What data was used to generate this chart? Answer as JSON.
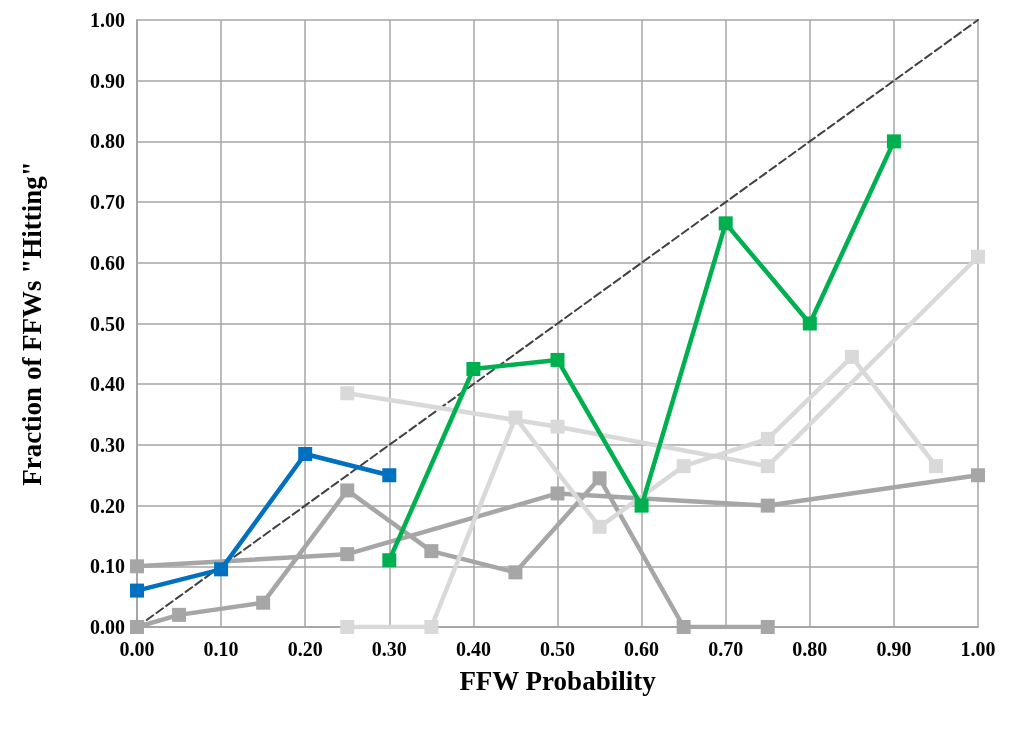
{
  "chart_data": {
    "type": "line",
    "xlabel": "FFW Probability",
    "ylabel": "Fraction of FFWs \"Hitting\"",
    "xlim": [
      0,
      1
    ],
    "ylim": [
      0,
      1
    ],
    "xticks": [
      {
        "value": 0,
        "label": "0.00"
      },
      {
        "value": 0.1,
        "label": "0.10"
      },
      {
        "value": 0.2,
        "label": "0.20"
      },
      {
        "value": 0.3,
        "label": "0.30"
      },
      {
        "value": 0.4,
        "label": "0.40"
      },
      {
        "value": 0.5,
        "label": "0.50"
      },
      {
        "value": 0.6,
        "label": "0.60"
      },
      {
        "value": 0.7,
        "label": "0.70"
      },
      {
        "value": 0.8,
        "label": "0.80"
      },
      {
        "value": 0.9,
        "label": "0.90"
      },
      {
        "value": 1,
        "label": "1.00"
      }
    ],
    "yticks": [
      {
        "value": 0,
        "label": "0.00"
      },
      {
        "value": 0.1,
        "label": "0.10"
      },
      {
        "value": 0.2,
        "label": "0.20"
      },
      {
        "value": 0.3,
        "label": "0.30"
      },
      {
        "value": 0.4,
        "label": "0.40"
      },
      {
        "value": 0.5,
        "label": "0.50"
      },
      {
        "value": 0.6,
        "label": "0.60"
      },
      {
        "value": 0.7,
        "label": "0.70"
      },
      {
        "value": 0.8,
        "label": "0.80"
      },
      {
        "value": 0.9,
        "label": "0.90"
      },
      {
        "value": 1,
        "label": "1.00"
      }
    ],
    "grid": true,
    "marker": "square",
    "series": [
      {
        "color": "#a6a6a6",
        "x": [
          0,
          0.25,
          0.5,
          0.75,
          1.0
        ],
        "values": [
          0.1,
          0.12,
          0.22,
          0.2,
          0.25
        ]
      },
      {
        "color": "#a6a6a6",
        "x": [
          0,
          0.05,
          0.15,
          0.25,
          0.35,
          0.45,
          0.55,
          0.65,
          0.75
        ],
        "values": [
          0,
          0.02,
          0.04,
          0.225,
          0.125,
          0.09,
          0.245,
          0,
          0
        ]
      },
      {
        "color": "#d9d9d9",
        "x": [
          0.25,
          0.5,
          0.75,
          1.0
        ],
        "values": [
          0.385,
          0.33,
          0.265,
          0.61
        ]
      },
      {
        "color": "#d9d9d9",
        "x": [
          0.25,
          0.35,
          0.45,
          0.55,
          0.65,
          0.75,
          0.85,
          0.95
        ],
        "values": [
          0,
          0,
          0.345,
          0.165,
          0.265,
          0.31,
          0.445,
          0.265
        ]
      },
      {
        "color": "#0070c0",
        "x": [
          0,
          0.1,
          0.2,
          0.3
        ],
        "values": [
          0.06,
          0.095,
          0.285,
          0.25
        ]
      },
      {
        "color": "#00b050",
        "x": [
          0.3,
          0.4,
          0.5,
          0.6,
          0.7,
          0.8,
          0.9
        ],
        "values": [
          0.11,
          0.425,
          0.44,
          0.2,
          0.665,
          0.5,
          0.8
        ]
      },
      {
        "color": "#404040",
        "x": [
          0,
          1
        ],
        "values": [
          0,
          1
        ],
        "marker": "none",
        "line_style": "dashed"
      }
    ]
  }
}
